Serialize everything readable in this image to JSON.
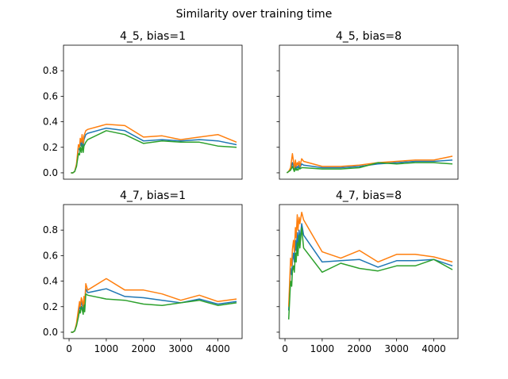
{
  "figure_title": "Similarity over training time",
  "colors": {
    "series_a": "#1f77b4",
    "series_b": "#ff7f0e",
    "series_c": "#2ca02c"
  },
  "chart_data": [
    {
      "type": "line",
      "title": "4_5, bias=1",
      "xlim": [
        -150,
        4650
      ],
      "ylim": [
        -0.05,
        1.0
      ],
      "yticks": [
        0.0,
        0.2,
        0.4,
        0.6,
        0.8
      ],
      "x": [
        50,
        100,
        150,
        200,
        250,
        280,
        300,
        330,
        350,
        380,
        400,
        450,
        500,
        1000,
        1500,
        2000,
        2500,
        3000,
        3500,
        4000,
        4500
      ],
      "series": [
        {
          "color": "#1f77b4",
          "values": [
            0.0,
            0.0,
            0.01,
            0.06,
            0.19,
            0.18,
            0.24,
            0.21,
            0.27,
            0.2,
            0.26,
            0.3,
            0.31,
            0.35,
            0.33,
            0.25,
            0.26,
            0.25,
            0.26,
            0.25,
            0.22
          ]
        },
        {
          "color": "#ff7f0e",
          "values": [
            0.0,
            0.0,
            0.01,
            0.07,
            0.22,
            0.2,
            0.27,
            0.24,
            0.3,
            0.23,
            0.29,
            0.33,
            0.34,
            0.38,
            0.37,
            0.28,
            0.29,
            0.26,
            0.28,
            0.3,
            0.24
          ]
        },
        {
          "color": "#2ca02c",
          "values": [
            0.0,
            0.0,
            0.01,
            0.05,
            0.15,
            0.14,
            0.2,
            0.16,
            0.22,
            0.16,
            0.21,
            0.24,
            0.26,
            0.33,
            0.3,
            0.23,
            0.25,
            0.24,
            0.24,
            0.21,
            0.2
          ]
        }
      ]
    },
    {
      "type": "line",
      "title": "4_5, bias=8",
      "xlim": [
        -150,
        4650
      ],
      "ylim": [
        -0.05,
        1.0
      ],
      "yticks": [
        0.0,
        0.2,
        0.4,
        0.6,
        0.8
      ],
      "x": [
        50,
        100,
        150,
        200,
        250,
        280,
        300,
        330,
        350,
        380,
        400,
        450,
        500,
        1000,
        1500,
        2000,
        2500,
        3000,
        3500,
        4000,
        4500
      ],
      "series": [
        {
          "color": "#1f77b4",
          "values": [
            0.0,
            0.01,
            0.03,
            0.08,
            0.02,
            0.07,
            0.03,
            0.05,
            0.04,
            0.06,
            0.04,
            0.07,
            0.06,
            0.04,
            0.04,
            0.05,
            0.07,
            0.08,
            0.09,
            0.09,
            0.1
          ]
        },
        {
          "color": "#ff7f0e",
          "values": [
            0.0,
            0.01,
            0.04,
            0.15,
            0.04,
            0.1,
            0.05,
            0.08,
            0.06,
            0.09,
            0.05,
            0.11,
            0.09,
            0.05,
            0.05,
            0.06,
            0.08,
            0.09,
            0.1,
            0.1,
            0.13
          ]
        },
        {
          "color": "#2ca02c",
          "values": [
            0.0,
            0.01,
            0.02,
            0.05,
            0.01,
            0.04,
            0.02,
            0.03,
            0.02,
            0.04,
            0.03,
            0.04,
            0.04,
            0.03,
            0.03,
            0.04,
            0.08,
            0.07,
            0.08,
            0.08,
            0.07
          ]
        }
      ]
    },
    {
      "type": "line",
      "title": "4_7, bias=1",
      "xlim": [
        -150,
        4650
      ],
      "ylim": [
        -0.05,
        1.0
      ],
      "xticks": [
        0,
        1000,
        2000,
        3000,
        4000
      ],
      "yticks": [
        0.0,
        0.2,
        0.4,
        0.6,
        0.8
      ],
      "x": [
        50,
        100,
        150,
        200,
        250,
        280,
        300,
        330,
        350,
        380,
        400,
        420,
        450,
        500,
        1000,
        1500,
        2000,
        2500,
        3000,
        3500,
        4000,
        4500
      ],
      "series": [
        {
          "color": "#1f77b4",
          "values": [
            0.0,
            0.0,
            0.01,
            0.06,
            0.15,
            0.2,
            0.18,
            0.24,
            0.22,
            0.17,
            0.26,
            0.2,
            0.34,
            0.31,
            0.34,
            0.28,
            0.27,
            0.25,
            0.23,
            0.26,
            0.22,
            0.24
          ]
        },
        {
          "color": "#ff7f0e",
          "values": [
            0.0,
            0.0,
            0.01,
            0.07,
            0.18,
            0.24,
            0.2,
            0.27,
            0.25,
            0.2,
            0.28,
            0.22,
            0.38,
            0.33,
            0.42,
            0.33,
            0.33,
            0.3,
            0.25,
            0.29,
            0.24,
            0.26
          ]
        },
        {
          "color": "#2ca02c",
          "values": [
            0.0,
            0.0,
            0.01,
            0.05,
            0.12,
            0.17,
            0.15,
            0.2,
            0.18,
            0.14,
            0.21,
            0.16,
            0.3,
            0.29,
            0.26,
            0.25,
            0.22,
            0.21,
            0.23,
            0.25,
            0.21,
            0.23
          ]
        }
      ]
    },
    {
      "type": "line",
      "title": "4_7, bias=8",
      "xlim": [
        -150,
        4650
      ],
      "ylim": [
        -0.05,
        1.0
      ],
      "xticks": [
        0,
        1000,
        2000,
        3000,
        4000
      ],
      "yticks": [
        0.0,
        0.2,
        0.4,
        0.6,
        0.8
      ],
      "x": [
        100,
        150,
        180,
        200,
        230,
        250,
        280,
        300,
        330,
        350,
        380,
        400,
        450,
        500,
        1000,
        1500,
        2000,
        2500,
        3000,
        3500,
        4000,
        4500
      ],
      "series": [
        {
          "color": "#1f77b4",
          "values": [
            0.17,
            0.5,
            0.45,
            0.56,
            0.62,
            0.55,
            0.72,
            0.64,
            0.78,
            0.68,
            0.8,
            0.72,
            0.85,
            0.76,
            0.55,
            0.56,
            0.57,
            0.51,
            0.56,
            0.56,
            0.57,
            0.52
          ]
        },
        {
          "color": "#ff7f0e",
          "values": [
            0.2,
            0.58,
            0.52,
            0.65,
            0.72,
            0.63,
            0.82,
            0.74,
            0.92,
            0.8,
            0.9,
            0.85,
            0.94,
            0.88,
            0.63,
            0.58,
            0.64,
            0.55,
            0.61,
            0.61,
            0.59,
            0.55
          ]
        },
        {
          "color": "#2ca02c",
          "values": [
            0.1,
            0.4,
            0.36,
            0.48,
            0.52,
            0.47,
            0.62,
            0.55,
            0.7,
            0.6,
            0.76,
            0.66,
            0.82,
            0.66,
            0.47,
            0.54,
            0.5,
            0.48,
            0.52,
            0.52,
            0.57,
            0.49
          ]
        }
      ]
    }
  ]
}
